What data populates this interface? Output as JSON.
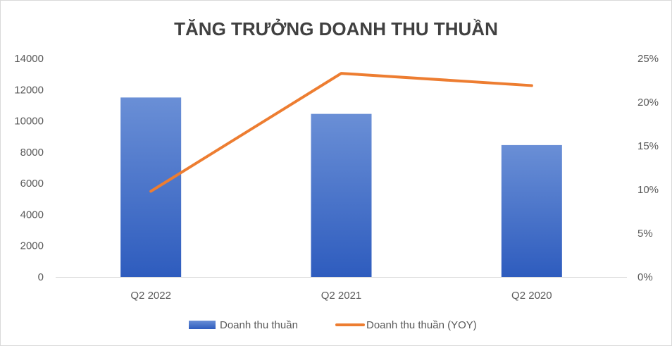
{
  "chart_data": {
    "type": "bar",
    "title": "TĂNG TRƯỞNG DOANH THU THUẦN",
    "categories": [
      "Q2 2022",
      "Q2 2021",
      "Q2 2020"
    ],
    "series": [
      {
        "name": "Doanh thu thuần",
        "type": "bar",
        "axis": "left",
        "values": [
          11500,
          10450,
          8450
        ],
        "color": "#4472C4",
        "gradient": [
          "#6a8fd6",
          "#2e5cbe"
        ]
      },
      {
        "name": "Doanh thu thuần (YOY)",
        "type": "line",
        "axis": "right",
        "values": [
          9.8,
          23.3,
          21.9
        ],
        "unit": "%",
        "color": "#ED7D31"
      }
    ],
    "y_left": {
      "ylim": [
        0,
        14000
      ],
      "ticks": [
        0,
        2000,
        4000,
        6000,
        8000,
        10000,
        12000,
        14000
      ]
    },
    "y_right": {
      "ylim": [
        0,
        25
      ],
      "ticks": [
        "0%",
        "5%",
        "10%",
        "15%",
        "20%",
        "25%"
      ]
    },
    "grid": false,
    "legend": "bottom"
  }
}
